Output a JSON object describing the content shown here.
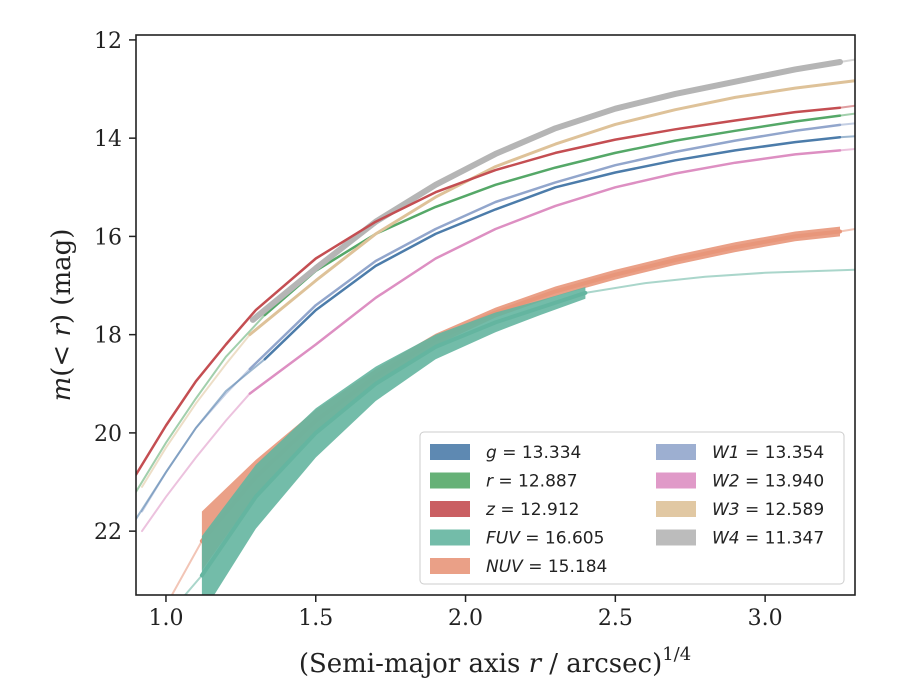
{
  "chart_data": {
    "type": "line",
    "xlabel": "(Semi-major axis r / arcsec)",
    "xlabel_parts": {
      "prefix": "(Semi-major axis ",
      "var": "r",
      "suffix": " / arcsec)",
      "exponent": "1/4"
    },
    "ylabel": "m(< r) (mag)",
    "ylabel_parts": {
      "m": "m",
      "open": "(",
      "lt": "< ",
      "r": "r",
      "close": ")",
      "unit": " (mag)"
    },
    "xlim": [
      0.9,
      3.3
    ],
    "ylim": [
      23.3,
      11.9
    ],
    "y_inverted": true,
    "xticks": [
      1.0,
      1.5,
      2.0,
      2.5,
      3.0
    ],
    "xtick_labels": [
      "1.0",
      "1.5",
      "2.0",
      "2.5",
      "3.0"
    ],
    "yticks": [
      12,
      14,
      16,
      18,
      20,
      22
    ],
    "ytick_labels": [
      "12",
      "14",
      "16",
      "18",
      "20",
      "22"
    ],
    "grid": false,
    "legend_position": "lower-right",
    "series": [
      {
        "name": "g",
        "label_var": "g",
        "label_value": "= 13.334",
        "color": "#4c7caa",
        "width": 2.5,
        "band": 0,
        "x": [
          1.33,
          1.5,
          1.7,
          1.9,
          2.1,
          2.3,
          2.5,
          2.7,
          2.9,
          3.1,
          3.25
        ],
        "y": [
          18.5,
          17.5,
          16.6,
          15.95,
          15.45,
          15.0,
          14.7,
          14.45,
          14.25,
          14.08,
          13.98
        ],
        "ext_x": [
          0.9,
          1.0,
          1.1,
          1.2,
          1.33
        ],
        "ext_y": [
          21.75,
          20.8,
          19.9,
          19.15,
          18.5
        ],
        "ext_end": [
          3.25,
          3.3
        ],
        "ext_end_y": [
          13.98,
          13.96
        ]
      },
      {
        "name": "r",
        "label_var": "r",
        "label_value": "= 12.887",
        "color": "#55a868",
        "width": 2.5,
        "band": 0,
        "x": [
          1.33,
          1.5,
          1.7,
          1.9,
          2.1,
          2.3,
          2.5,
          2.7,
          2.9,
          3.1,
          3.25
        ],
        "y": [
          17.6,
          16.7,
          15.95,
          15.4,
          14.95,
          14.6,
          14.3,
          14.05,
          13.85,
          13.66,
          13.54
        ],
        "ext_x": [
          0.9,
          1.0,
          1.1,
          1.2,
          1.33
        ],
        "ext_y": [
          21.2,
          20.2,
          19.3,
          18.45,
          17.6
        ],
        "ext_end": [
          3.25,
          3.3
        ],
        "ext_end_y": [
          13.54,
          13.5
        ]
      },
      {
        "name": "z",
        "label_var": "z",
        "label_value": "= 12.912",
        "color": "#c44e52",
        "width": 2.5,
        "band": 0,
        "x": [
          0.9,
          1.0,
          1.1,
          1.2,
          1.3,
          1.5,
          1.7,
          1.9,
          2.1,
          2.3,
          2.5,
          2.7,
          2.9,
          3.1,
          3.25
        ],
        "y": [
          20.85,
          19.85,
          18.95,
          18.2,
          17.5,
          16.45,
          15.7,
          15.1,
          14.65,
          14.3,
          14.03,
          13.82,
          13.64,
          13.47,
          13.38
        ],
        "ext_x": [],
        "ext_y": [],
        "ext_end": [
          3.25,
          3.3
        ],
        "ext_end_y": [
          13.38,
          13.34
        ]
      },
      {
        "name": "FUV",
        "label_var": "FUV",
        "label_value": "= 16.605",
        "color": "#64b5a0",
        "width": 4,
        "band": 1,
        "x": [
          1.12,
          1.3,
          1.5,
          1.7,
          1.9,
          2.1,
          2.25,
          2.4
        ],
        "y": [
          22.9,
          21.3,
          20.0,
          19.0,
          18.25,
          17.75,
          17.45,
          17.15
        ],
        "band_width": [
          0.8,
          0.65,
          0.5,
          0.35,
          0.25,
          0.2,
          0.15,
          0.12
        ],
        "ext_x": [
          1.12,
          1.05
        ],
        "ext_y": [
          22.9,
          23.4
        ],
        "ext_end": [
          2.4,
          2.6,
          2.8,
          3.0,
          3.3
        ],
        "ext_end_y": [
          17.15,
          16.95,
          16.82,
          16.74,
          16.68
        ]
      },
      {
        "name": "NUV",
        "label_var": "NUV",
        "label_value": "= 15.184",
        "color": "#e8967a",
        "width": 4,
        "band": 1,
        "x": [
          1.12,
          1.3,
          1.5,
          1.7,
          1.9,
          2.1,
          2.3,
          2.5,
          2.7,
          2.9,
          3.1,
          3.25
        ],
        "y": [
          22.2,
          20.9,
          19.75,
          18.85,
          18.1,
          17.55,
          17.12,
          16.78,
          16.48,
          16.22,
          16.0,
          15.9
        ],
        "band_width": [
          0.6,
          0.35,
          0.22,
          0.15,
          0.12,
          0.1,
          0.1,
          0.1,
          0.1,
          0.1,
          0.1,
          0.1
        ],
        "ext_x": [
          1.02,
          1.12
        ],
        "ext_y": [
          23.3,
          22.2
        ],
        "ext_end": [
          3.25,
          3.3
        ],
        "ext_end_y": [
          15.9,
          15.85
        ]
      },
      {
        "name": "W1",
        "label_var": "W1",
        "label_value": "= 13.354",
        "color": "#92a6cc",
        "width": 2.5,
        "band": 0,
        "x": [
          1.28,
          1.5,
          1.7,
          1.9,
          2.1,
          2.3,
          2.5,
          2.7,
          2.9,
          3.1,
          3.25
        ],
        "y": [
          18.7,
          17.4,
          16.5,
          15.85,
          15.3,
          14.9,
          14.55,
          14.28,
          14.05,
          13.85,
          13.73
        ],
        "ext_x": [
          0.92,
          1.0,
          1.1,
          1.2,
          1.28
        ],
        "ext_y": [
          21.6,
          20.8,
          19.9,
          19.2,
          18.7
        ],
        "ext_end": [
          3.25,
          3.3
        ],
        "ext_end_y": [
          13.73,
          13.7
        ]
      },
      {
        "name": "W2",
        "label_var": "W2",
        "label_value": "= 13.940",
        "color": "#dd8fc2",
        "width": 2.5,
        "band": 0,
        "x": [
          1.28,
          1.5,
          1.7,
          1.9,
          2.1,
          2.3,
          2.5,
          2.7,
          2.9,
          3.1,
          3.25
        ],
        "y": [
          19.2,
          18.2,
          17.25,
          16.45,
          15.85,
          15.38,
          15.0,
          14.72,
          14.5,
          14.33,
          14.25
        ],
        "ext_x": [
          0.92,
          1.0,
          1.1,
          1.2,
          1.28
        ],
        "ext_y": [
          22.0,
          21.3,
          20.5,
          19.75,
          19.2
        ],
        "ext_end": [
          3.25,
          3.3
        ],
        "ext_end_y": [
          14.25,
          14.22
        ]
      },
      {
        "name": "W3",
        "label_var": "W3",
        "label_value": "= 12.589",
        "color": "#dec299",
        "width": 3,
        "band": 0,
        "x": [
          1.28,
          1.5,
          1.7,
          1.9,
          2.1,
          2.3,
          2.5,
          2.7,
          2.9,
          3.1,
          3.3
        ],
        "y": [
          18.0,
          16.9,
          15.95,
          15.2,
          14.58,
          14.12,
          13.72,
          13.42,
          13.17,
          12.98,
          12.83
        ],
        "ext_x": [
          0.92,
          1.0,
          1.1,
          1.2,
          1.28
        ],
        "ext_y": [
          21.1,
          20.3,
          19.4,
          18.6,
          18.0
        ],
        "ext_end": [],
        "ext_end_y": []
      },
      {
        "name": "W4",
        "label_var": "W4",
        "label_value": "= 11.347",
        "color": "#b5b5b5",
        "width": 6,
        "band": 0,
        "x": [
          1.29,
          1.5,
          1.7,
          1.9,
          2.1,
          2.3,
          2.5,
          2.7,
          2.9,
          3.1,
          3.25
        ],
        "y": [
          17.7,
          16.65,
          15.7,
          14.95,
          14.32,
          13.8,
          13.4,
          13.1,
          12.85,
          12.6,
          12.45
        ],
        "ext_x": [],
        "ext_y": [],
        "ext_end": [
          3.25,
          3.3
        ],
        "ext_end_y": [
          12.45,
          12.4
        ]
      }
    ]
  }
}
